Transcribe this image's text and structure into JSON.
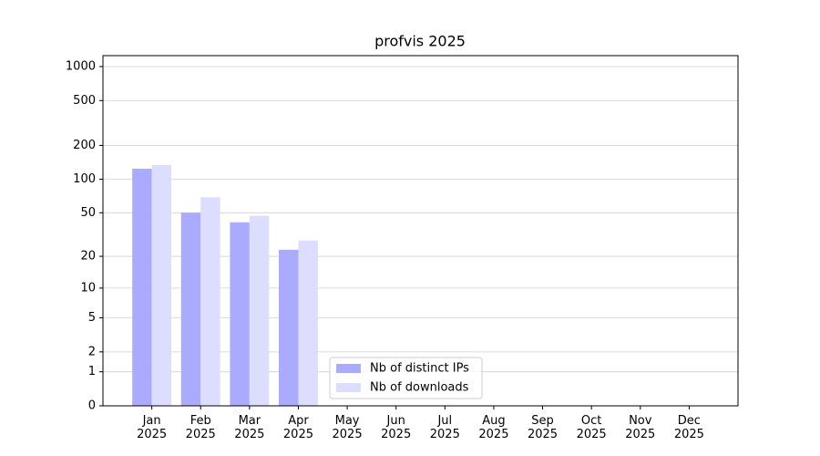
{
  "chart_data": {
    "type": "bar",
    "title": "profvis 2025",
    "scale": "log1p",
    "categories": [
      "Jan\n2025",
      "Feb\n2025",
      "Mar\n2025",
      "Apr\n2025",
      "May\n2025",
      "Jun\n2025",
      "Jul\n2025",
      "Aug\n2025",
      "Sep\n2025",
      "Oct\n2025",
      "Nov\n2025",
      "Dec\n2025"
    ],
    "series": [
      {
        "name": "Nb of distinct IPs",
        "color": "#aaaaff",
        "values": [
          124,
          50,
          41,
          23,
          0,
          0,
          0,
          0,
          0,
          0,
          0,
          0
        ]
      },
      {
        "name": "Nb of downloads",
        "color": "#ddddff",
        "values": [
          134,
          69,
          47,
          28,
          0,
          0,
          0,
          0,
          0,
          0,
          0,
          0
        ]
      }
    ],
    "ylim": [
      0,
      1250
    ],
    "yticks": [
      0,
      1,
      2,
      5,
      10,
      20,
      50,
      100,
      200,
      500,
      1000
    ],
    "grid": true,
    "legend": "lower center"
  }
}
